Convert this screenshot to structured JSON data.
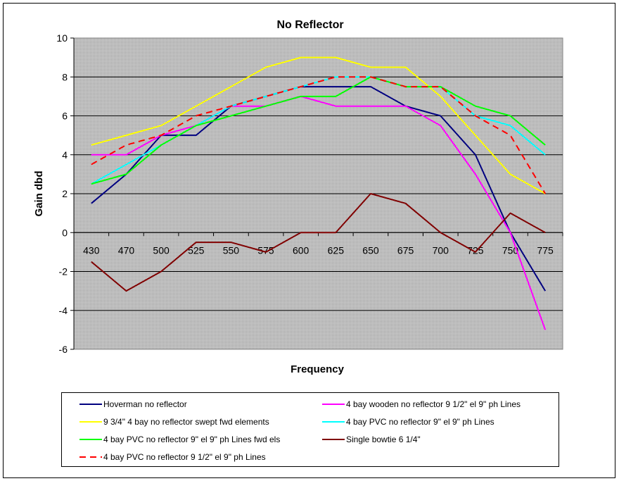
{
  "chart_data": {
    "type": "line",
    "title": "No Reflector",
    "xlabel": "Frequency",
    "ylabel": "Gain dbd",
    "ylim": [
      -6,
      10
    ],
    "yticks": [
      -6,
      -4,
      -2,
      0,
      2,
      4,
      6,
      8,
      10
    ],
    "grid": true,
    "legend_position": "bottom",
    "categories": [
      "430",
      "470",
      "500",
      "525",
      "550",
      "575",
      "600",
      "625",
      "650",
      "675",
      "700",
      "725",
      "750",
      "775"
    ],
    "series": [
      {
        "name": "Hoverman no reflector",
        "color": "#000080",
        "dash": false,
        "values": [
          1.5,
          3,
          5,
          5,
          6.5,
          7,
          7.5,
          7.5,
          7.5,
          6.5,
          6,
          4,
          0,
          -3
        ]
      },
      {
        "name": "4 bay wooden no reflector 9 1/2\" el 9\" ph Lines",
        "color": "#FF00FF",
        "dash": false,
        "values": [
          4,
          4,
          5,
          5.5,
          6.5,
          6.5,
          7,
          6.5,
          6.5,
          6.5,
          5.5,
          3,
          0,
          -5
        ]
      },
      {
        "name": "9 3/4\" 4 bay no reflector swept fwd elements",
        "color": "#FFFF00",
        "dash": false,
        "values": [
          4.5,
          5,
          5.5,
          6.5,
          7.5,
          8.5,
          9,
          9,
          8.5,
          8.5,
          7,
          5,
          3,
          2
        ]
      },
      {
        "name": "4 bay PVC no reflector 9\" el 9\" ph Lines",
        "color": "#00FFFF",
        "dash": false,
        "values": [
          2.5,
          3.5,
          4.5,
          5.5,
          6.5,
          7,
          7.5,
          8,
          8,
          7.5,
          7.5,
          6,
          5.5,
          4
        ]
      },
      {
        "name": "4 bay PVC no reflector 9\" el 9\" ph Lines fwd els",
        "color": "#00FF00",
        "dash": false,
        "values": [
          2.5,
          3,
          4.5,
          5.5,
          6,
          6.5,
          7,
          7,
          8,
          7.5,
          7.5,
          6.5,
          6,
          4.5
        ]
      },
      {
        "name": "Single bowtie 6 1/4\"",
        "color": "#800000",
        "dash": false,
        "values": [
          -1.5,
          -3,
          -2,
          -0.5,
          -0.5,
          -1,
          0,
          0,
          2,
          1.5,
          0,
          -1,
          1,
          0
        ]
      },
      {
        "name": "4 bay PVC no reflector 9 1/2\" el 9\" ph Lines",
        "color": "#FF0000",
        "dash": true,
        "values": [
          3.5,
          4.5,
          5,
          6,
          6.5,
          7,
          7.5,
          8,
          8,
          7.5,
          7.5,
          6,
          5,
          2
        ]
      }
    ]
  }
}
